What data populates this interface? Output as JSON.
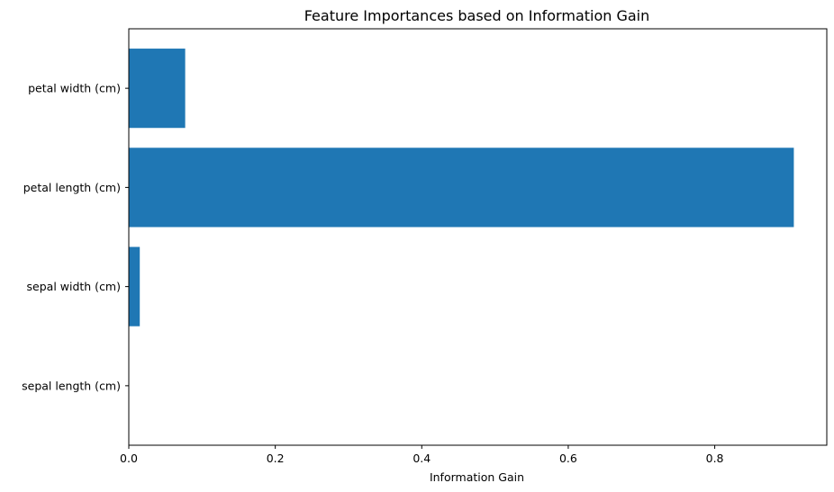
{
  "chart_data": {
    "type": "bar",
    "orientation": "horizontal",
    "title": "Feature Importances based on Information Gain",
    "xlabel": "Information Gain",
    "ylabel": "",
    "categories": [
      "sepal length (cm)",
      "sepal width (cm)",
      "petal length (cm)",
      "petal width (cm)"
    ],
    "values": [
      0.0,
      0.015,
      0.908,
      0.077
    ],
    "xlim": [
      0,
      0.953
    ],
    "xticks": [
      0,
      0.2,
      0.4,
      0.6,
      0.8
    ],
    "xtick_labels": [
      "0.0",
      "0.2",
      "0.4",
      "0.6",
      "0.8"
    ],
    "bar_color": "#1f77b4",
    "grid": false,
    "legend": "none"
  }
}
